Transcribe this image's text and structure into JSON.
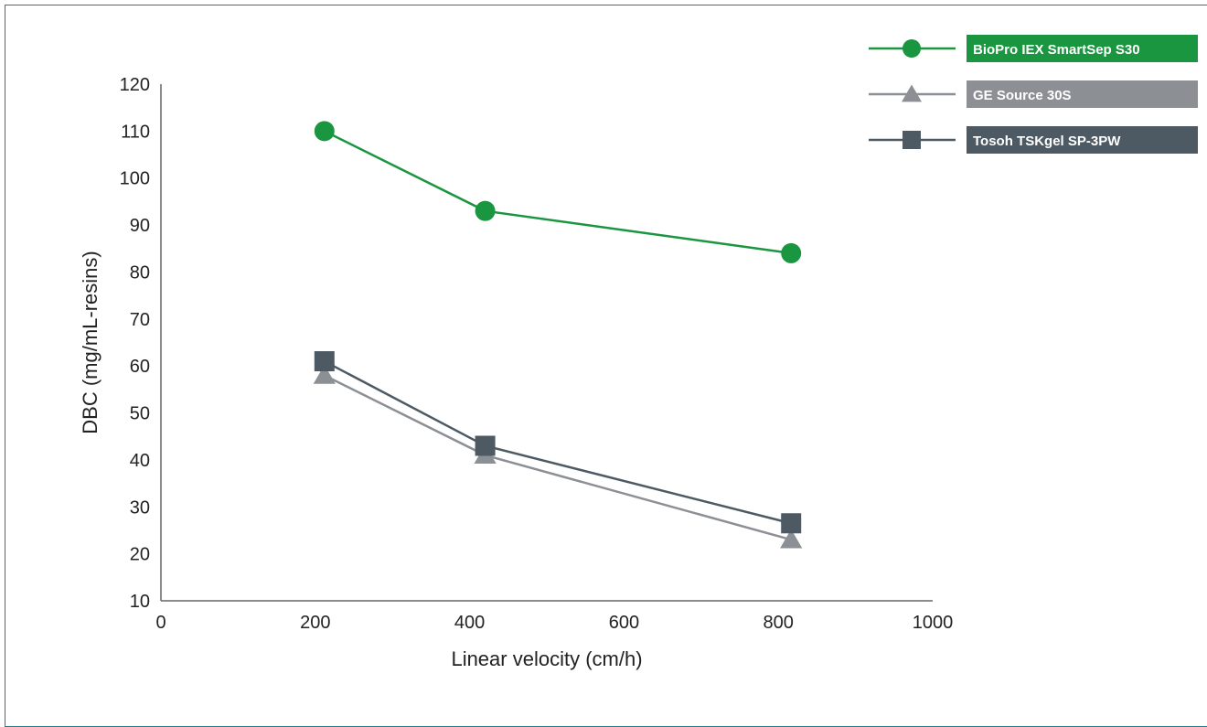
{
  "chart_data": {
    "type": "line",
    "title": "",
    "xlabel": "Linear velocity (cm/h)",
    "ylabel": "DBC (mg/mL-resins)",
    "xlim": [
      0,
      1000
    ],
    "ylim": [
      10,
      120
    ],
    "x_ticks": [
      0,
      200,
      400,
      600,
      800,
      1000
    ],
    "y_ticks": [
      10,
      20,
      30,
      40,
      50,
      60,
      70,
      80,
      90,
      100,
      110,
      120
    ],
    "grid": false,
    "legend_position": "top-right",
    "series": [
      {
        "name": "BioPro IEX SmartSep S30",
        "marker": "circle",
        "color": "#1a9641",
        "x": [
          200,
          400,
          800
        ],
        "y": [
          110,
          93,
          84
        ]
      },
      {
        "name": "GE Source 30S",
        "marker": "triangle",
        "color": "#8c9094",
        "x": [
          200,
          400,
          800
        ],
        "y": [
          58,
          41,
          23
        ]
      },
      {
        "name": "Tosoh TSKgel SP-3PW",
        "marker": "square",
        "color": "#4d5a63",
        "x": [
          200,
          400,
          800
        ],
        "y": [
          61,
          43,
          26.5
        ]
      }
    ]
  }
}
